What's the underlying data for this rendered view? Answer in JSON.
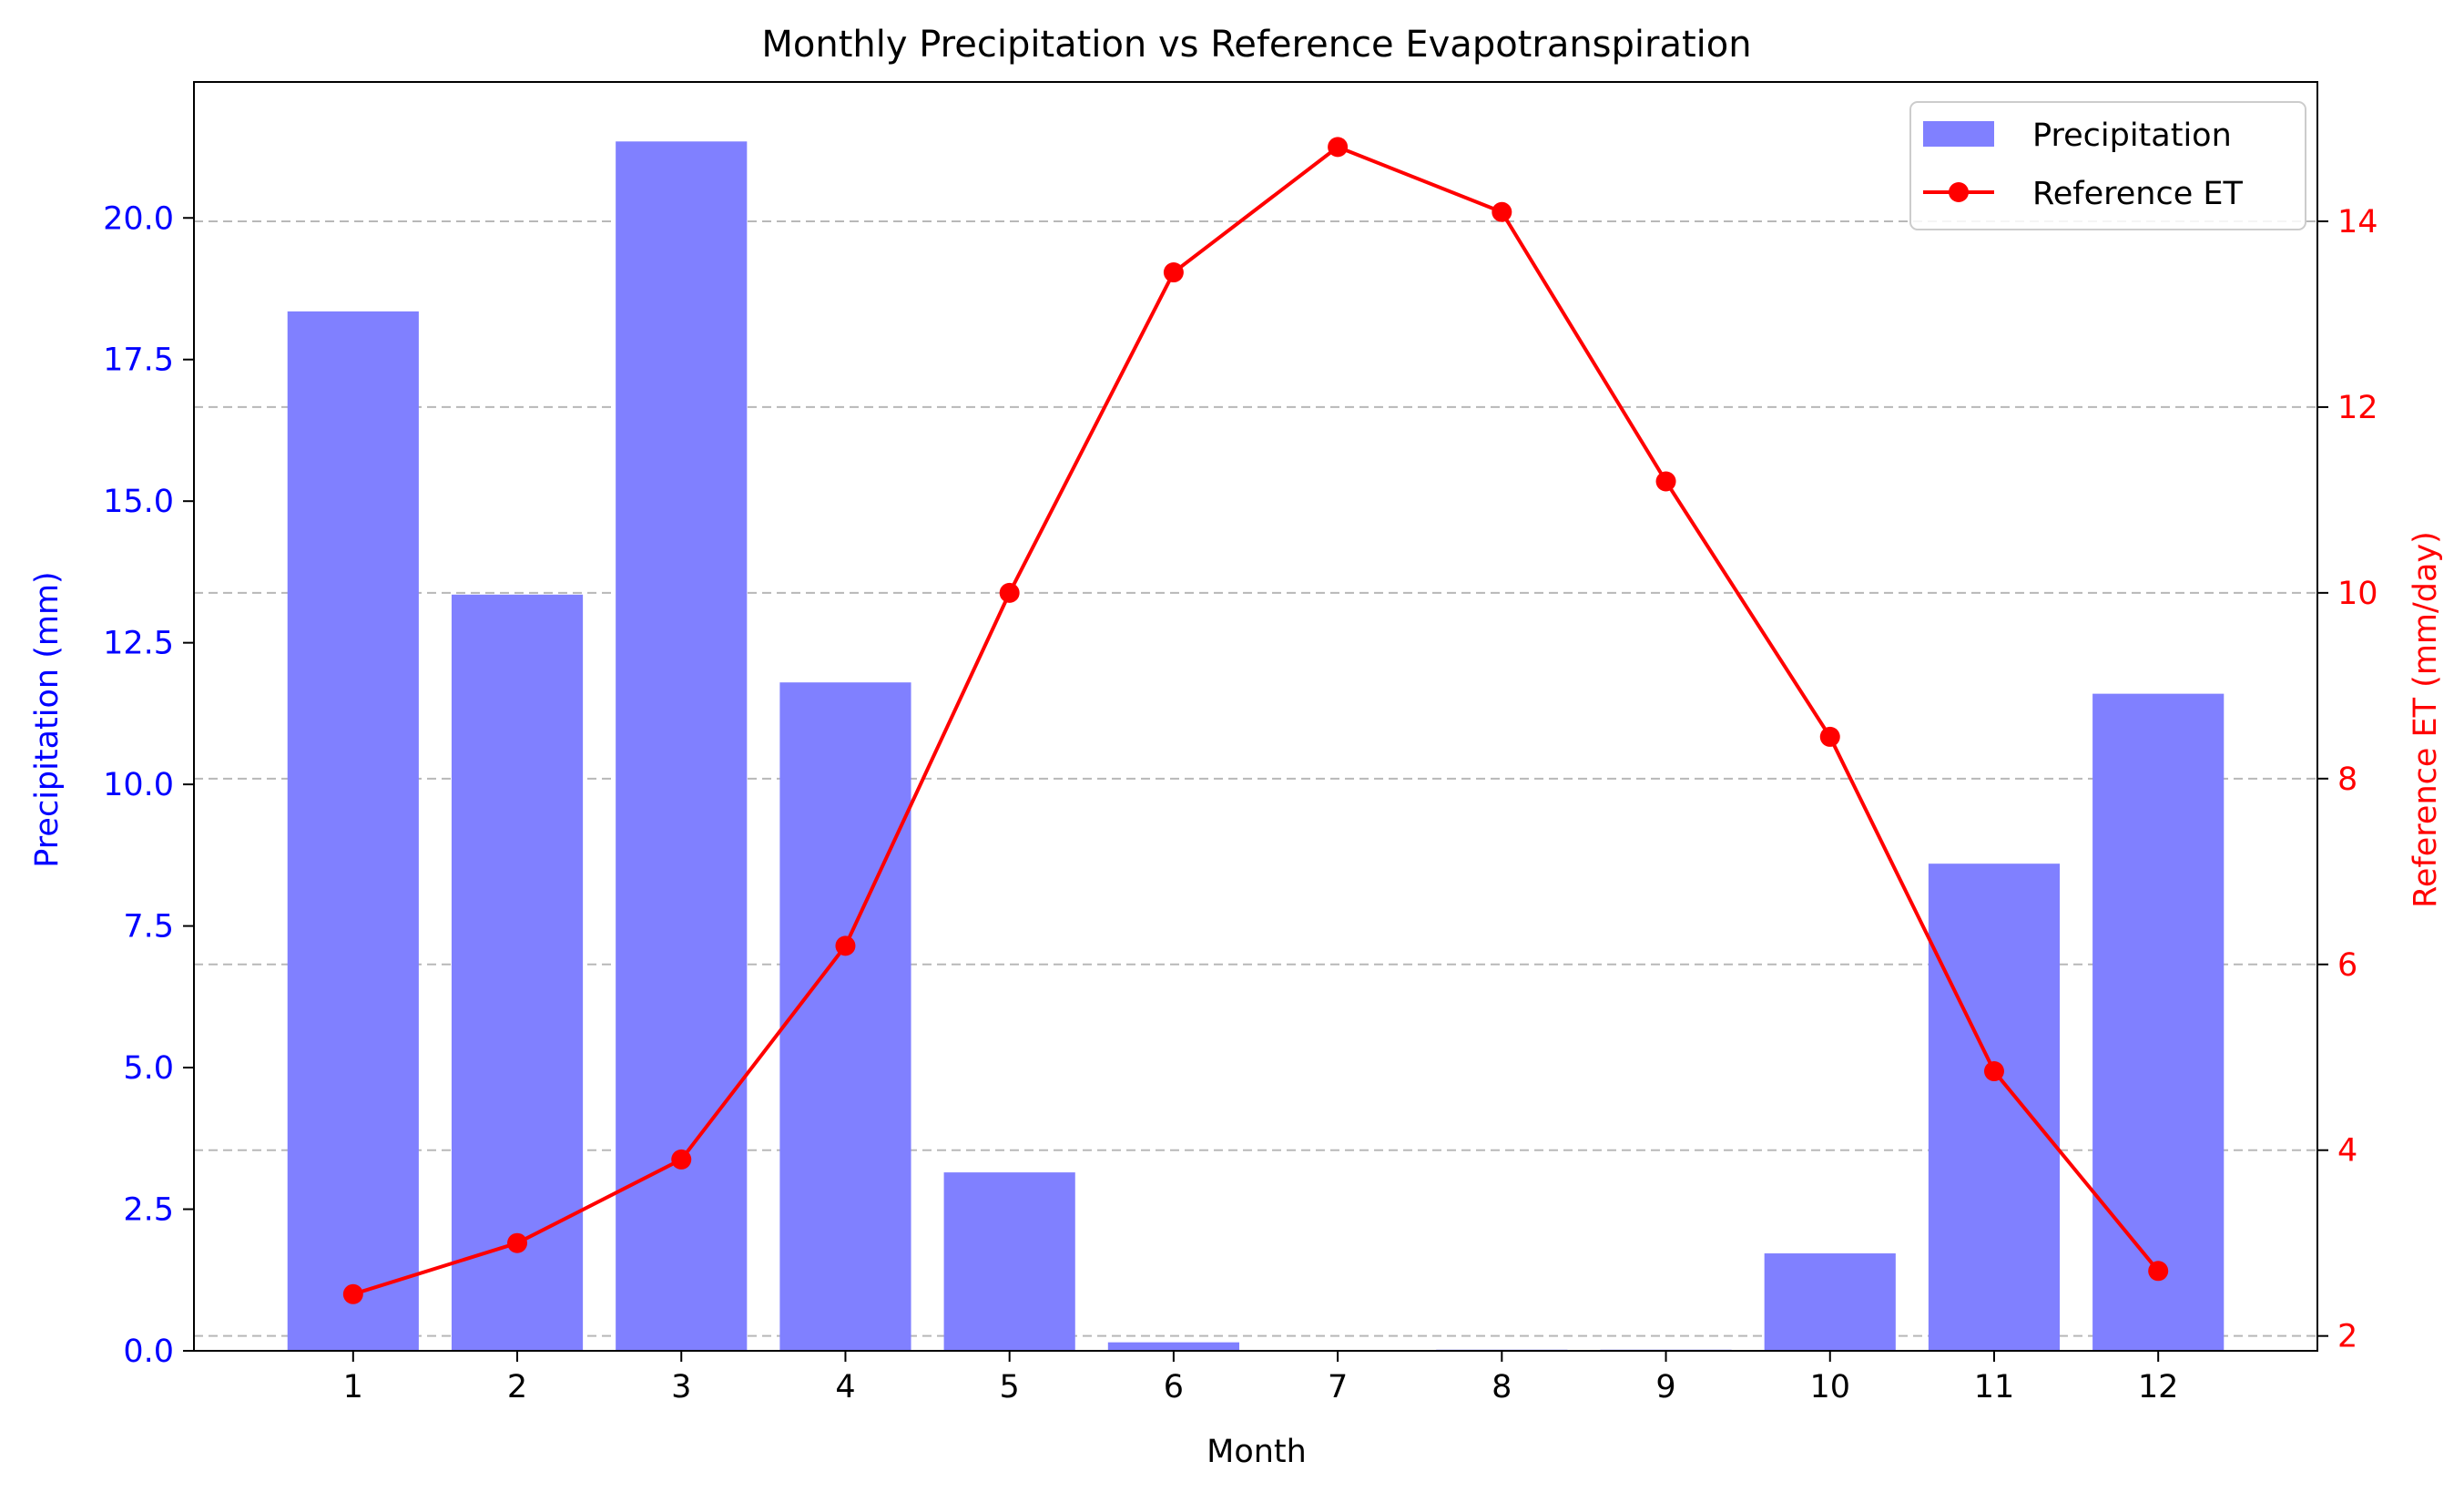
{
  "chart_data": {
    "type": "bar",
    "title": "Monthly Precipitation vs Reference Evapotranspiration",
    "xlabel": "Month",
    "categories": [
      "1",
      "2",
      "3",
      "4",
      "5",
      "6",
      "7",
      "8",
      "9",
      "10",
      "11",
      "12"
    ],
    "series": [
      {
        "name": "Precipitation",
        "type": "bar",
        "axis": "left",
        "color": "#8080ff",
        "values": [
          18.35,
          13.35,
          21.35,
          11.8,
          3.15,
          0.15,
          0.0,
          0.02,
          0.02,
          1.72,
          8.6,
          11.6
        ]
      },
      {
        "name": "Reference ET",
        "type": "line",
        "axis": "right",
        "color": "#ff0000",
        "marker": "circle",
        "values": [
          2.45,
          3.0,
          3.9,
          6.2,
          10.0,
          13.45,
          14.8,
          14.1,
          11.2,
          8.45,
          4.85,
          2.7
        ]
      }
    ],
    "y_left": {
      "label": "Precipitation (mm)",
      "color": "#0000ff",
      "range": [
        0,
        22.4
      ],
      "ticks": [
        "0.0",
        "2.5",
        "5.0",
        "7.5",
        "10.0",
        "12.5",
        "15.0",
        "17.5",
        "20.0"
      ]
    },
    "y_right": {
      "label": "Reference ET (mm/day)",
      "color": "#ff0000",
      "range": [
        1.84,
        15.5
      ],
      "ticks": [
        "2",
        "4",
        "6",
        "8",
        "10",
        "12",
        "14"
      ]
    },
    "grid": "right-axis horizontal dashed",
    "legend_position": "top-right"
  }
}
